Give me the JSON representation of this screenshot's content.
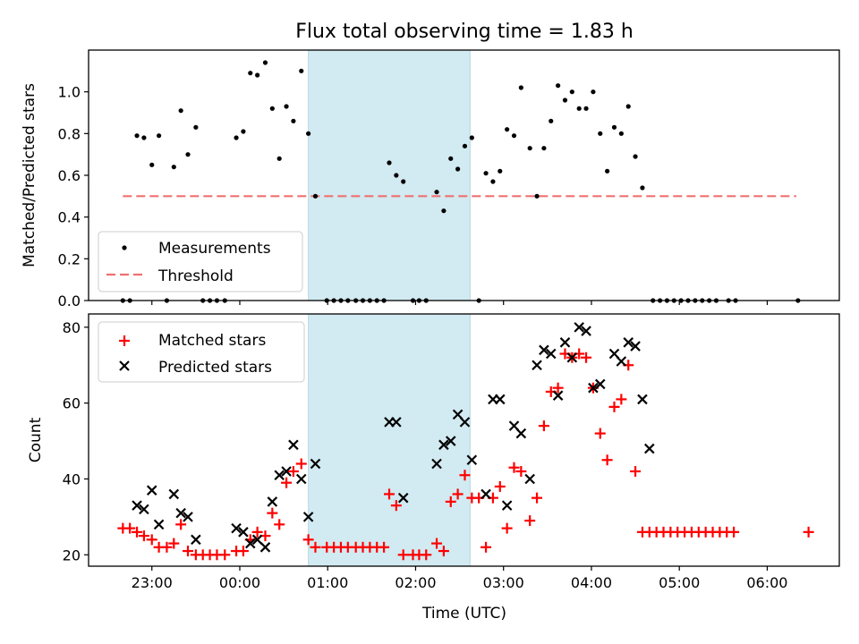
{
  "chart_data": {
    "title": "Flux total observing time = 1.83 h",
    "colors": {
      "measurement": "#000000",
      "threshold": "#f07070",
      "matched": "#ff0000",
      "predicted": "#000000",
      "window_fill": "#add8e6"
    },
    "observing_window": {
      "start_h": -1.22,
      "end_h": 0.62
    },
    "xlabel": "Time (UTC)",
    "xlim_h": [
      -3.72,
      4.82
    ],
    "x_ticks": [
      {
        "h": -3.0,
        "label": "23:00"
      },
      {
        "h": -2.0,
        "label": "00:00"
      },
      {
        "h": -1.0,
        "label": "01:00"
      },
      {
        "h": 0.0,
        "label": "02:00"
      },
      {
        "h": 1.0,
        "label": "03:00"
      },
      {
        "h": 2.0,
        "label": "04:00"
      },
      {
        "h": 3.0,
        "label": "05:00"
      },
      {
        "h": 4.0,
        "label": "06:00"
      }
    ],
    "charts": [
      {
        "type": "scatter",
        "ylabel": "Matched/Predicted stars",
        "ylim": [
          0,
          1.2
        ],
        "y_ticks": [
          "0.0",
          "0.2",
          "0.4",
          "0.6",
          "0.8",
          "1.0"
        ],
        "legend": {
          "position": "lower-left",
          "measurements_label": "Measurements",
          "threshold_label": "Threshold"
        },
        "threshold": {
          "value": 0.5,
          "x_start_h": -3.33,
          "x_end_h": 4.33
        },
        "measurements": [
          [
            -3.33,
            0.0
          ],
          [
            -3.25,
            0.0
          ],
          [
            -3.17,
            0.79
          ],
          [
            -3.09,
            0.78
          ],
          [
            -3.0,
            0.65
          ],
          [
            -2.92,
            0.79
          ],
          [
            -2.83,
            0.0
          ],
          [
            -2.75,
            0.64
          ],
          [
            -2.67,
            0.91
          ],
          [
            -2.59,
            0.7
          ],
          [
            -2.5,
            0.83
          ],
          [
            -2.42,
            0.0
          ],
          [
            -2.34,
            0.0
          ],
          [
            -2.26,
            0.0
          ],
          [
            -2.17,
            0.0
          ],
          [
            -2.04,
            0.78
          ],
          [
            -1.96,
            0.81
          ],
          [
            -1.88,
            1.09
          ],
          [
            -1.8,
            1.08
          ],
          [
            -1.71,
            1.14
          ],
          [
            -1.63,
            0.92
          ],
          [
            -1.55,
            0.68
          ],
          [
            -1.47,
            0.93
          ],
          [
            -1.39,
            0.86
          ],
          [
            -1.3,
            1.1
          ],
          [
            -1.22,
            0.8
          ],
          [
            -1.14,
            0.5
          ],
          [
            -1.01,
            0.0
          ],
          [
            -0.93,
            0.0
          ],
          [
            -0.85,
            0.0
          ],
          [
            -0.77,
            0.0
          ],
          [
            -0.68,
            0.0
          ],
          [
            -0.6,
            0.0
          ],
          [
            -0.52,
            0.0
          ],
          [
            -0.44,
            0.0
          ],
          [
            -0.36,
            0.0
          ],
          [
            -0.3,
            0.66
          ],
          [
            -0.22,
            0.6
          ],
          [
            -0.14,
            0.57
          ],
          [
            -0.03,
            0.0
          ],
          [
            0.04,
            0.0
          ],
          [
            0.12,
            0.0
          ],
          [
            0.24,
            0.52
          ],
          [
            0.32,
            0.43
          ],
          [
            0.4,
            0.68
          ],
          [
            0.48,
            0.63
          ],
          [
            0.56,
            0.74
          ],
          [
            0.64,
            0.78
          ],
          [
            0.72,
            0.0
          ],
          [
            0.8,
            0.61
          ],
          [
            0.88,
            0.57
          ],
          [
            0.96,
            0.62
          ],
          [
            1.04,
            0.82
          ],
          [
            1.12,
            0.79
          ],
          [
            1.2,
            1.02
          ],
          [
            1.3,
            0.73
          ],
          [
            1.38,
            0.5
          ],
          [
            1.46,
            0.73
          ],
          [
            1.54,
            0.86
          ],
          [
            1.62,
            1.03
          ],
          [
            1.7,
            0.96
          ],
          [
            1.78,
            1.0
          ],
          [
            1.86,
            0.92
          ],
          [
            1.94,
            0.92
          ],
          [
            2.02,
            1.0
          ],
          [
            2.1,
            0.8
          ],
          [
            2.18,
            0.62
          ],
          [
            2.26,
            0.83
          ],
          [
            2.34,
            0.8
          ],
          [
            2.42,
            0.93
          ],
          [
            2.5,
            0.69
          ],
          [
            2.58,
            0.54
          ],
          [
            2.7,
            0.0
          ],
          [
            2.78,
            0.0
          ],
          [
            2.86,
            0.0
          ],
          [
            2.94,
            0.0
          ],
          [
            3.02,
            0.0
          ],
          [
            3.1,
            0.0
          ],
          [
            3.18,
            0.0
          ],
          [
            3.26,
            0.0
          ],
          [
            3.34,
            0.0
          ],
          [
            3.42,
            0.0
          ],
          [
            3.56,
            0.0
          ],
          [
            3.64,
            0.0
          ],
          [
            4.35,
            0.0
          ]
        ]
      },
      {
        "type": "scatter",
        "ylabel": "Count",
        "ylim": [
          17,
          83.5
        ],
        "y_ticks": [
          "20",
          "40",
          "60",
          "80"
        ],
        "legend": {
          "position": "top-left",
          "matched_label": "Matched stars",
          "predicted_label": "Predicted stars"
        },
        "matched": [
          [
            -3.33,
            27
          ],
          [
            -3.25,
            27
          ],
          [
            -3.17,
            26
          ],
          [
            -3.09,
            25
          ],
          [
            -3.0,
            24
          ],
          [
            -2.92,
            22
          ],
          [
            -2.83,
            22
          ],
          [
            -2.75,
            23
          ],
          [
            -2.67,
            28
          ],
          [
            -2.59,
            21
          ],
          [
            -2.5,
            20
          ],
          [
            -2.42,
            20
          ],
          [
            -2.34,
            20
          ],
          [
            -2.26,
            20
          ],
          [
            -2.17,
            20
          ],
          [
            -2.04,
            21
          ],
          [
            -1.96,
            21
          ],
          [
            -1.88,
            24
          ],
          [
            -1.8,
            26
          ],
          [
            -1.71,
            25
          ],
          [
            -1.63,
            31
          ],
          [
            -1.55,
            28
          ],
          [
            -1.47,
            39
          ],
          [
            -1.39,
            42
          ],
          [
            -1.3,
            44
          ],
          [
            -1.22,
            24
          ],
          [
            -1.14,
            22
          ],
          [
            -1.01,
            22
          ],
          [
            -0.93,
            22
          ],
          [
            -0.85,
            22
          ],
          [
            -0.77,
            22
          ],
          [
            -0.68,
            22
          ],
          [
            -0.6,
            22
          ],
          [
            -0.52,
            22
          ],
          [
            -0.44,
            22
          ],
          [
            -0.36,
            22
          ],
          [
            -0.3,
            36
          ],
          [
            -0.22,
            33
          ],
          [
            -0.14,
            20
          ],
          [
            -0.03,
            20
          ],
          [
            0.04,
            20
          ],
          [
            0.12,
            20
          ],
          [
            0.24,
            23
          ],
          [
            0.32,
            21
          ],
          [
            0.4,
            34
          ],
          [
            0.48,
            36
          ],
          [
            0.56,
            41
          ],
          [
            0.64,
            35
          ],
          [
            0.72,
            35
          ],
          [
            0.8,
            22
          ],
          [
            0.88,
            35
          ],
          [
            0.96,
            38
          ],
          [
            1.04,
            27
          ],
          [
            1.12,
            43
          ],
          [
            1.2,
            42
          ],
          [
            1.3,
            29
          ],
          [
            1.38,
            35
          ],
          [
            1.46,
            54
          ],
          [
            1.54,
            63
          ],
          [
            1.62,
            64
          ],
          [
            1.7,
            73
          ],
          [
            1.78,
            72
          ],
          [
            1.86,
            73
          ],
          [
            1.94,
            72
          ],
          [
            2.02,
            64
          ],
          [
            2.1,
            52
          ],
          [
            2.18,
            45
          ],
          [
            2.26,
            59
          ],
          [
            2.34,
            61
          ],
          [
            2.42,
            70
          ],
          [
            2.5,
            42
          ],
          [
            2.58,
            26
          ],
          [
            2.66,
            26
          ],
          [
            2.74,
            26
          ],
          [
            2.82,
            26
          ],
          [
            2.9,
            26
          ],
          [
            2.98,
            26
          ],
          [
            3.06,
            26
          ],
          [
            3.14,
            26
          ],
          [
            3.22,
            26
          ],
          [
            3.3,
            26
          ],
          [
            3.38,
            26
          ],
          [
            3.46,
            26
          ],
          [
            3.54,
            26
          ],
          [
            3.62,
            26
          ],
          [
            4.47,
            26
          ]
        ],
        "predicted": [
          [
            -3.17,
            33
          ],
          [
            -3.09,
            32
          ],
          [
            -3.0,
            37
          ],
          [
            -2.92,
            28
          ],
          [
            -2.75,
            36
          ],
          [
            -2.67,
            31
          ],
          [
            -2.59,
            30
          ],
          [
            -2.5,
            24
          ],
          [
            -2.04,
            27
          ],
          [
            -1.96,
            26
          ],
          [
            -1.88,
            23
          ],
          [
            -1.8,
            24
          ],
          [
            -1.71,
            22
          ],
          [
            -1.63,
            34
          ],
          [
            -1.55,
            41
          ],
          [
            -1.47,
            42
          ],
          [
            -1.39,
            49
          ],
          [
            -1.3,
            40
          ],
          [
            -1.22,
            30
          ],
          [
            -1.14,
            44
          ],
          [
            -0.3,
            55
          ],
          [
            -0.22,
            55
          ],
          [
            -0.14,
            35
          ],
          [
            0.24,
            44
          ],
          [
            0.32,
            49
          ],
          [
            0.4,
            50
          ],
          [
            0.48,
            57
          ],
          [
            0.56,
            55
          ],
          [
            0.64,
            45
          ],
          [
            0.8,
            36
          ],
          [
            0.88,
            61
          ],
          [
            0.96,
            61
          ],
          [
            1.04,
            33
          ],
          [
            1.12,
            54
          ],
          [
            1.2,
            52
          ],
          [
            1.3,
            40
          ],
          [
            1.38,
            70
          ],
          [
            1.46,
            74
          ],
          [
            1.54,
            73
          ],
          [
            1.62,
            62
          ],
          [
            1.7,
            76
          ],
          [
            1.78,
            72
          ],
          [
            1.86,
            80
          ],
          [
            1.94,
            79
          ],
          [
            2.02,
            64
          ],
          [
            2.1,
            65
          ],
          [
            2.26,
            73
          ],
          [
            2.34,
            71
          ],
          [
            2.42,
            76
          ],
          [
            2.5,
            75
          ],
          [
            2.58,
            61
          ],
          [
            2.66,
            48
          ]
        ]
      }
    ]
  }
}
